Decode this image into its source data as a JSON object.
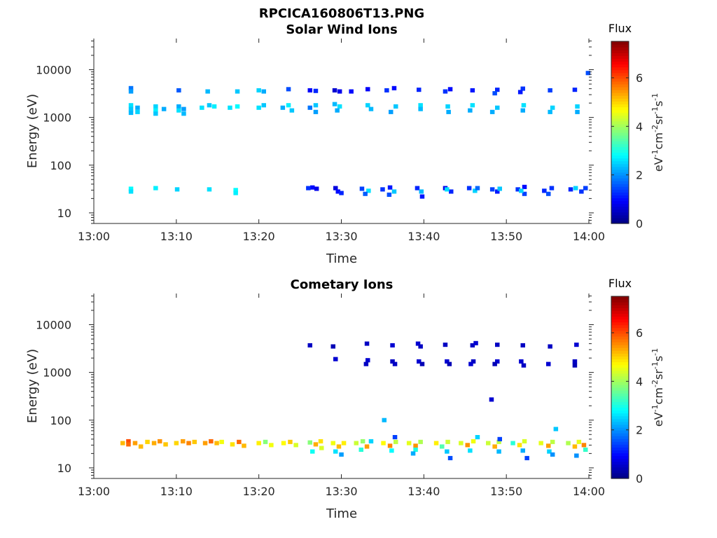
{
  "figure": {
    "filename": "RPCICA160806T13.PNG"
  },
  "chart_data": [
    {
      "type": "heatmap",
      "title": "Solar Wind Ions",
      "xlabel": "Time",
      "ylabel": "Energy (eV)",
      "x_range": [
        "13:00",
        "14:00"
      ],
      "x_ticks": [
        "13:00",
        "13:10",
        "13:20",
        "13:30",
        "13:40",
        "13:50",
        "14:00"
      ],
      "y_scale": "log",
      "ylim": [
        6,
        45000
      ],
      "y_ticks": [
        10,
        100,
        1000,
        10000
      ],
      "y_tick_labels": [
        "10",
        "100",
        "1000",
        "10000"
      ],
      "colorbar": {
        "title": "Flux",
        "label": "eV-1cm-2sr-1s-1",
        "range": [
          0,
          7.5
        ],
        "ticks": [
          "0",
          "2",
          "4",
          "6"
        ],
        "colormap": "jet"
      },
      "points_note": "each cell: [minutes after 13:00, energy eV, flux]",
      "cells": [
        [
          4.5,
          4100,
          1.8
        ],
        [
          4.5,
          3500,
          2.1
        ],
        [
          4.5,
          1800,
          2.6
        ],
        [
          4.5,
          1500,
          2.4
        ],
        [
          4.5,
          1250,
          2.3
        ],
        [
          5.3,
          1600,
          2.2
        ],
        [
          5.3,
          1300,
          2.5
        ],
        [
          7.5,
          1700,
          2.5
        ],
        [
          7.5,
          1400,
          2.7
        ],
        [
          7.5,
          1200,
          2.4
        ],
        [
          8.5,
          1500,
          2.2
        ],
        [
          10.3,
          3700,
          1.6
        ],
        [
          10.3,
          1700,
          2.2
        ],
        [
          10.3,
          1400,
          2.6
        ],
        [
          10.9,
          1200,
          2.3
        ],
        [
          10.9,
          1500,
          2.1
        ],
        [
          13.8,
          3500,
          2.3
        ],
        [
          13.1,
          1600,
          2.6
        ],
        [
          14.0,
          1800,
          2.4
        ],
        [
          14.6,
          1700,
          2.7
        ],
        [
          17.4,
          3500,
          2.4
        ],
        [
          16.5,
          1600,
          2.6
        ],
        [
          17.4,
          1700,
          2.8
        ],
        [
          20.0,
          3700,
          2.5
        ],
        [
          20.6,
          3500,
          2.2
        ],
        [
          20.0,
          1600,
          2.6
        ],
        [
          20.6,
          1800,
          2.4
        ],
        [
          23.6,
          3900,
          1.5
        ],
        [
          22.9,
          1600,
          2.2
        ],
        [
          23.6,
          1800,
          2.7
        ],
        [
          24.0,
          1400,
          2.4
        ],
        [
          26.2,
          3700,
          0.9
        ],
        [
          26.9,
          3600,
          1.2
        ],
        [
          26.2,
          1600,
          1.8
        ],
        [
          26.9,
          1800,
          2.4
        ],
        [
          26.9,
          1300,
          2.1
        ],
        [
          29.2,
          3700,
          0.6
        ],
        [
          29.8,
          3500,
          0.8
        ],
        [
          29.2,
          1900,
          2.3
        ],
        [
          29.8,
          1700,
          2.6
        ],
        [
          29.5,
          1400,
          2.2
        ],
        [
          31.2,
          3500,
          1.0
        ],
        [
          33.2,
          3900,
          0.9
        ],
        [
          33.2,
          1800,
          2.5
        ],
        [
          33.6,
          1500,
          2.3
        ],
        [
          35.5,
          3700,
          1.3
        ],
        [
          36.4,
          4100,
          1.0
        ],
        [
          36.6,
          1700,
          2.4
        ],
        [
          36.0,
          1300,
          2.1
        ],
        [
          39.4,
          3800,
          1.2
        ],
        [
          39.6,
          1800,
          2.6
        ],
        [
          39.6,
          1500,
          2.3
        ],
        [
          42.6,
          3500,
          1.3
        ],
        [
          43.2,
          3900,
          1.0
        ],
        [
          42.9,
          1700,
          2.5
        ],
        [
          43.0,
          1300,
          2.2
        ],
        [
          45.9,
          3700,
          1.1
        ],
        [
          45.9,
          1800,
          2.6
        ],
        [
          45.6,
          1400,
          2.2
        ],
        [
          48.9,
          3800,
          1.2
        ],
        [
          48.6,
          3200,
          1.5
        ],
        [
          48.9,
          1600,
          2.4
        ],
        [
          48.3,
          1300,
          2.2
        ],
        [
          52.0,
          4000,
          1.3
        ],
        [
          51.7,
          3400,
          1.1
        ],
        [
          52.1,
          1800,
          2.6
        ],
        [
          52.0,
          1400,
          2.2
        ],
        [
          55.3,
          3700,
          1.4
        ],
        [
          55.6,
          1600,
          2.5
        ],
        [
          55.3,
          1300,
          2.3
        ],
        [
          58.3,
          3800,
          1.2
        ],
        [
          58.6,
          1700,
          2.5
        ],
        [
          58.6,
          1300,
          2.2
        ],
        [
          59.9,
          8500,
          1.5
        ],
        [
          4.5,
          32,
          2.8
        ],
        [
          4.5,
          28,
          2.6
        ],
        [
          7.5,
          33,
          2.7
        ],
        [
          10.1,
          31,
          2.5
        ],
        [
          14.0,
          31,
          2.6
        ],
        [
          17.2,
          30,
          2.8
        ],
        [
          17.2,
          26,
          2.7
        ],
        [
          26.5,
          34,
          1.0
        ],
        [
          27.0,
          32,
          0.8
        ],
        [
          26.0,
          33,
          1.3
        ],
        [
          29.3,
          33,
          0.7
        ],
        [
          29.6,
          28,
          1.0
        ],
        [
          30.0,
          26,
          1.2
        ],
        [
          32.5,
          32,
          1.4
        ],
        [
          33.3,
          29,
          2.6
        ],
        [
          32.9,
          25,
          1.6
        ],
        [
          35.0,
          31,
          1.3
        ],
        [
          35.9,
          34,
          1.1
        ],
        [
          36.4,
          28,
          2.4
        ],
        [
          35.8,
          24,
          1.5
        ],
        [
          39.2,
          33,
          1.2
        ],
        [
          39.7,
          28,
          2.3
        ],
        [
          39.8,
          22,
          1.1
        ],
        [
          42.6,
          33,
          0.8
        ],
        [
          43.3,
          28,
          1.2
        ],
        [
          42.8,
          31,
          2.6
        ],
        [
          45.5,
          33,
          1.3
        ],
        [
          46.2,
          29,
          2.5
        ],
        [
          46.5,
          33,
          1.7
        ],
        [
          48.3,
          31,
          1.4
        ],
        [
          48.9,
          28,
          1.1
        ],
        [
          49.2,
          32,
          2.4
        ],
        [
          51.4,
          31,
          1.3
        ],
        [
          52.2,
          35,
          1.0
        ],
        [
          52.2,
          25,
          1.4
        ],
        [
          51.8,
          29,
          2.5
        ],
        [
          54.6,
          29,
          1.2
        ],
        [
          55.5,
          33,
          1.3
        ],
        [
          55.1,
          25,
          1.5
        ],
        [
          57.8,
          31,
          1.2
        ],
        [
          58.4,
          33,
          2.5
        ],
        [
          59.1,
          28,
          1.3
        ],
        [
          59.6,
          33,
          1.4
        ]
      ]
    },
    {
      "type": "heatmap",
      "title": "Cometary Ions",
      "xlabel": "Time",
      "ylabel": "Energy (eV)",
      "x_range": [
        "13:00",
        "14:00"
      ],
      "x_ticks": [
        "13:00",
        "13:10",
        "13:20",
        "13:30",
        "13:40",
        "13:50",
        "14:00"
      ],
      "y_scale": "log",
      "ylim": [
        6,
        45000
      ],
      "y_ticks": [
        10,
        100,
        1000,
        10000
      ],
      "y_tick_labels": [
        "10",
        "100",
        "1000",
        "10000"
      ],
      "colorbar": {
        "title": "Flux",
        "label": "eV-1cm-2sr-1s-1",
        "range": [
          0,
          7.5
        ],
        "ticks": [
          "0",
          "2",
          "4",
          "6"
        ],
        "colormap": "jet"
      },
      "points_note": "each cell: [minutes after 13:00, energy eV, flux]",
      "cells": [
        [
          26.2,
          3700,
          0.5
        ],
        [
          29.0,
          3500,
          0.4
        ],
        [
          29.3,
          1900,
          0.6
        ],
        [
          33.1,
          4000,
          0.5
        ],
        [
          33.2,
          1800,
          0.6
        ],
        [
          33.0,
          1500,
          0.5
        ],
        [
          36.2,
          3700,
          0.6
        ],
        [
          36.2,
          1700,
          0.5
        ],
        [
          36.5,
          1500,
          0.5
        ],
        [
          39.3,
          4000,
          0.6
        ],
        [
          39.6,
          3500,
          0.5
        ],
        [
          39.4,
          1700,
          0.6
        ],
        [
          39.8,
          1500,
          0.4
        ],
        [
          42.6,
          3800,
          0.5
        ],
        [
          42.8,
          1700,
          0.6
        ],
        [
          43.1,
          1500,
          0.4
        ],
        [
          45.9,
          3700,
          0.5
        ],
        [
          46.3,
          4100,
          0.6
        ],
        [
          46.0,
          1700,
          0.5
        ],
        [
          45.7,
          1500,
          0.6
        ],
        [
          48.9,
          3800,
          0.5
        ],
        [
          48.9,
          1700,
          0.6
        ],
        [
          48.6,
          1500,
          0.4
        ],
        [
          52.0,
          3700,
          0.5
        ],
        [
          51.8,
          1700,
          0.6
        ],
        [
          52.1,
          1400,
          0.5
        ],
        [
          55.3,
          3500,
          0.5
        ],
        [
          55.1,
          1500,
          0.6
        ],
        [
          58.5,
          3800,
          0.6
        ],
        [
          58.3,
          1700,
          0.5
        ],
        [
          58.3,
          1400,
          0.4
        ],
        [
          48.2,
          270,
          0.6
        ],
        [
          35.2,
          100,
          2.3
        ],
        [
          56.0,
          65,
          2.4
        ],
        [
          3.5,
          33,
          5.2
        ],
        [
          4.2,
          36,
          6.0
        ],
        [
          4.2,
          31,
          5.8
        ],
        [
          5.0,
          33,
          5.4
        ],
        [
          5.7,
          28,
          5.2
        ],
        [
          6.5,
          35,
          5.0
        ],
        [
          7.3,
          33,
          5.3
        ],
        [
          8.0,
          36,
          5.5
        ],
        [
          8.7,
          31,
          5.1
        ],
        [
          10.0,
          33,
          5.0
        ],
        [
          10.8,
          36,
          5.4
        ],
        [
          11.5,
          33,
          5.6
        ],
        [
          12.2,
          35,
          5.1
        ],
        [
          13.5,
          33,
          5.4
        ],
        [
          14.2,
          36,
          5.8
        ],
        [
          14.9,
          33,
          5.2
        ],
        [
          15.5,
          35,
          4.6
        ],
        [
          16.8,
          31,
          4.9
        ],
        [
          17.6,
          35,
          5.8
        ],
        [
          18.2,
          29,
          5.2
        ],
        [
          20.0,
          33,
          4.8
        ],
        [
          20.8,
          35,
          3.8
        ],
        [
          21.5,
          30,
          4.6
        ],
        [
          23.0,
          33,
          4.7
        ],
        [
          23.8,
          35,
          5.1
        ],
        [
          24.5,
          30,
          4.4
        ],
        [
          26.2,
          34,
          3.8
        ],
        [
          26.9,
          31,
          5.3
        ],
        [
          27.5,
          36,
          4.9
        ],
        [
          26.5,
          22,
          2.9
        ],
        [
          27.6,
          26,
          4.4
        ],
        [
          29.0,
          33,
          4.6
        ],
        [
          29.7,
          28,
          5.2
        ],
        [
          30.3,
          33,
          4.8
        ],
        [
          29.3,
          22,
          2.6
        ],
        [
          30.0,
          19,
          2.1
        ],
        [
          31.8,
          33,
          4.3
        ],
        [
          32.6,
          36,
          3.9
        ],
        [
          33.1,
          28,
          5.4
        ],
        [
          32.4,
          24,
          3.1
        ],
        [
          33.6,
          36,
          2.5
        ],
        [
          35.1,
          33,
          4.7
        ],
        [
          35.9,
          29,
          5.6
        ],
        [
          36.6,
          35,
          4.2
        ],
        [
          36.1,
          23,
          2.8
        ],
        [
          36.5,
          44,
          1.4
        ],
        [
          38.2,
          33,
          4.5
        ],
        [
          39.0,
          29,
          5.5
        ],
        [
          39.6,
          35,
          4.1
        ],
        [
          39.0,
          24,
          3.0
        ],
        [
          38.7,
          20,
          2.2
        ],
        [
          41.5,
          33,
          4.8
        ],
        [
          42.2,
          28,
          3.4
        ],
        [
          42.9,
          35,
          4.3
        ],
        [
          43.2,
          16,
          1.5
        ],
        [
          42.8,
          22,
          2.4
        ],
        [
          44.5,
          33,
          4.4
        ],
        [
          45.3,
          30,
          5.5
        ],
        [
          46.0,
          36,
          4.6
        ],
        [
          45.6,
          23,
          2.6
        ],
        [
          46.5,
          44,
          2.5
        ],
        [
          47.8,
          33,
          4.3
        ],
        [
          48.6,
          28,
          5.3
        ],
        [
          49.1,
          35,
          4.2
        ],
        [
          49.1,
          22,
          2.3
        ],
        [
          49.2,
          40,
          1.4
        ],
        [
          50.8,
          33,
          3.1
        ],
        [
          51.6,
          30,
          4.9
        ],
        [
          52.2,
          36,
          4.4
        ],
        [
          52.0,
          23,
          2.2
        ],
        [
          52.5,
          16,
          1.4
        ],
        [
          54.2,
          33,
          4.5
        ],
        [
          55.1,
          29,
          5.4
        ],
        [
          55.6,
          35,
          4.2
        ],
        [
          55.2,
          22,
          2.5
        ],
        [
          55.6,
          19,
          2.0
        ],
        [
          57.5,
          33,
          4.1
        ],
        [
          58.3,
          28,
          5.2
        ],
        [
          58.8,
          35,
          4.5
        ],
        [
          59.4,
          30,
          5.6
        ],
        [
          59.6,
          24,
          3.2
        ],
        [
          58.5,
          18,
          2.0
        ]
      ]
    }
  ]
}
